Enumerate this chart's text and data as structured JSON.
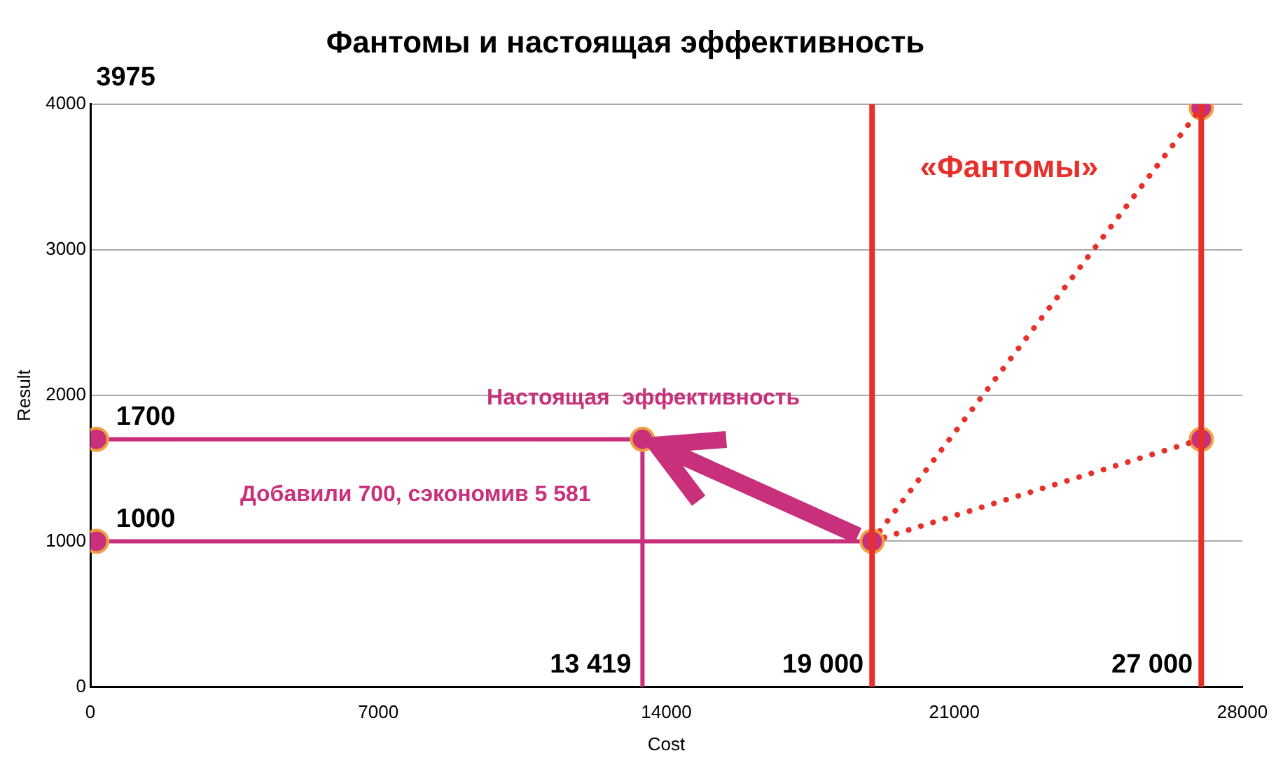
{
  "chart_data": {
    "type": "scatter",
    "title": "Фантомы и настоящая эффективность",
    "xlabel": "Cost",
    "ylabel": "Result",
    "xlim": [
      0,
      28000
    ],
    "xticks": [
      0,
      7000,
      14000,
      21000,
      28000
    ],
    "ylim": [
      0,
      4000
    ],
    "yticks": [
      0,
      1000,
      2000,
      3000,
      4000
    ],
    "grid": "y",
    "series": [
      {
        "type": "line",
        "color": "#c8307c",
        "x": [
          150,
          13419
        ],
        "values": [
          1700,
          1700
        ],
        "value_labels": [
          "1700",
          null
        ],
        "marker": "circle"
      },
      {
        "type": "line",
        "color": "#c8307c",
        "x": [
          13419,
          13419
        ],
        "values": [
          1700,
          0
        ],
        "marker": "none"
      },
      {
        "type": "line",
        "color": "#c8307c",
        "x": [
          150,
          19000
        ],
        "values": [
          1000,
          1000
        ],
        "value_labels": [
          "1000",
          null
        ],
        "marker": "circle"
      },
      {
        "type": "line",
        "color": "#e8302a",
        "x": [
          19000,
          27000
        ],
        "values": [
          1000,
          3975
        ],
        "marker": "none",
        "line_style": "dotted"
      },
      {
        "type": "line",
        "color": "#e8302a",
        "x": [
          19000,
          27000
        ],
        "values": [
          1000,
          1700
        ],
        "marker": "none",
        "line_style": "dotted"
      },
      {
        "type": "scatter",
        "color": "#c8307c",
        "x": [
          27000,
          27000
        ],
        "values": [
          3975,
          1700
        ],
        "marker": "circle"
      }
    ],
    "ref_lines": [
      {
        "axis": "x",
        "value": 19000,
        "label": "19 000",
        "color": "#e8302a"
      },
      {
        "axis": "x",
        "value": 27000,
        "label": "27 000",
        "color": "#e8302a"
      }
    ],
    "annotations": [
      "3975",
      {
        "text": "13 419",
        "x": 13419,
        "y": 0
      },
      "Настоящая  эффективность",
      "Добавили 700, сэкономив 5 581",
      "«Фантомы»"
    ]
  }
}
